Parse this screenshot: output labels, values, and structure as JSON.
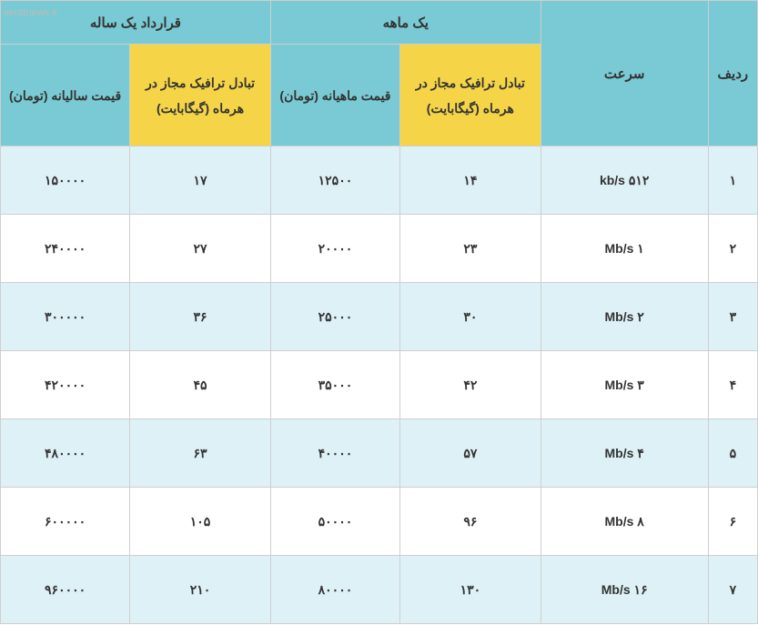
{
  "watermark": "seratnews.ir",
  "header": {
    "group_monthly": "یک ماهه",
    "group_yearly": "قرارداد یک ساله",
    "row": "ردیف",
    "speed": "سرعت",
    "traffic_m": "تبادل ترافیک مجاز در هرماه (گیگابایت)",
    "price_m": "قیمت ماهیانه (تومان)",
    "traffic_y": "تبادل ترافیک مجاز در هرماه (گیگابایت)",
    "price_y": "قیمت سالیانه (تومان)"
  },
  "rows": [
    {
      "n": "۱",
      "speed": "۵۱۲ kb/s",
      "tm": "۱۴",
      "pm": "۱۲۵۰۰",
      "ty": "۱۷",
      "py": "۱۵۰۰۰۰"
    },
    {
      "n": "۲",
      "speed": "۱ Mb/s",
      "tm": "۲۳",
      "pm": "۲۰۰۰۰",
      "ty": "۲۷",
      "py": "۲۴۰۰۰۰"
    },
    {
      "n": "۳",
      "speed": "۲ Mb/s",
      "tm": "۳۰",
      "pm": "۲۵۰۰۰",
      "ty": "۳۶",
      "py": "۳۰۰۰۰۰"
    },
    {
      "n": "۴",
      "speed": "۳ Mb/s",
      "tm": "۴۲",
      "pm": "۳۵۰۰۰",
      "ty": "۴۵",
      "py": "۴۲۰۰۰۰"
    },
    {
      "n": "۵",
      "speed": "۴ Mb/s",
      "tm": "۵۷",
      "pm": "۴۰۰۰۰",
      "ty": "۶۳",
      "py": "۴۸۰۰۰۰"
    },
    {
      "n": "۶",
      "speed": "۸ Mb/s",
      "tm": "۹۶",
      "pm": "۵۰۰۰۰",
      "ty": "۱۰۵",
      "py": "۶۰۰۰۰۰"
    },
    {
      "n": "۷",
      "speed": "۱۶ Mb/s",
      "tm": "۱۳۰",
      "pm": "۸۰۰۰۰",
      "ty": "۲۱۰",
      "py": "۹۶۰۰۰۰"
    }
  ]
}
